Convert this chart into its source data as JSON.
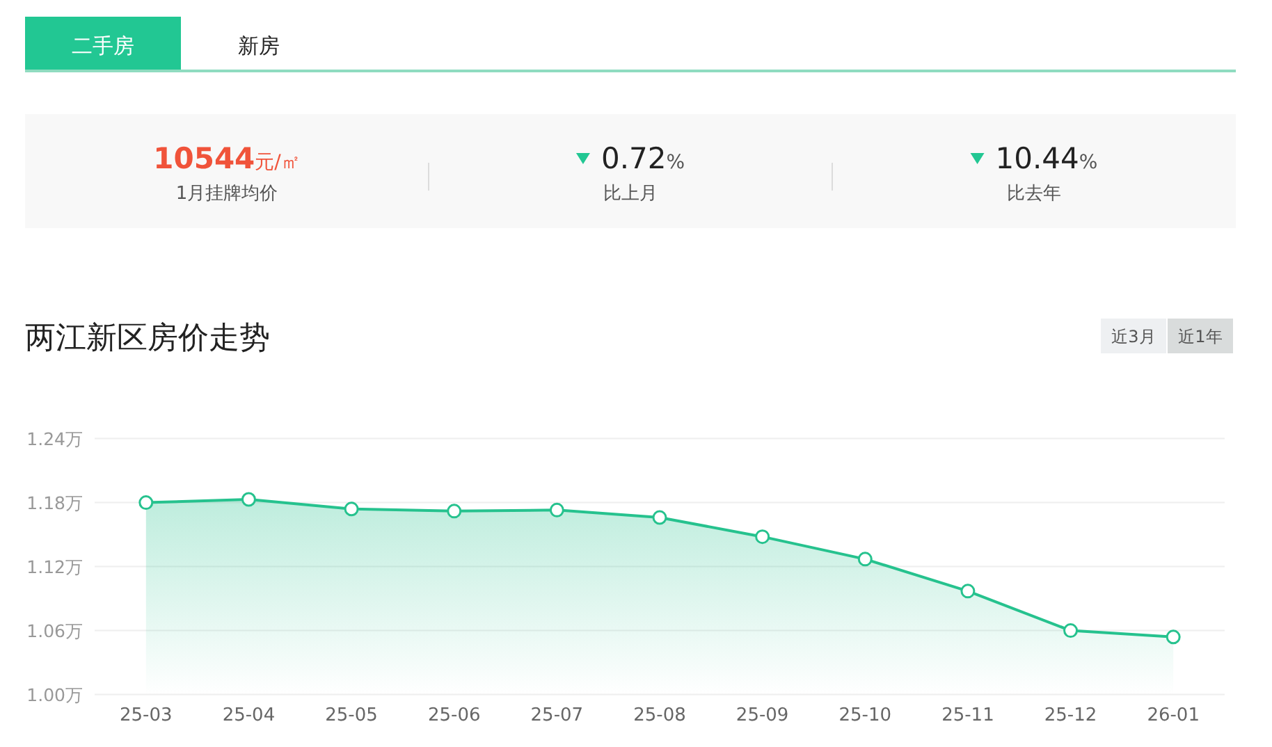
{
  "chart_data": [
    {
      "type": "other",
      "annotations": [
        "二手房",
        "新房",
        "10544元/㎡",
        "1月挂牌均价",
        "0.72%",
        "比上月",
        "10.44%",
        "比去年"
      ]
    },
    {
      "type": "area",
      "title": "两江新区房价走势",
      "annotations": [
        "近3月",
        "近1年"
      ],
      "categories": [
        "25-03",
        "25-04",
        "25-05",
        "25-06",
        "25-07",
        "25-08",
        "25-09",
        "25-10",
        "25-11",
        "25-12",
        "26-01"
      ],
      "values": [
        1.18,
        1.183,
        1.174,
        1.172,
        1.173,
        1.166,
        1.148,
        1.127,
        1.097,
        1.06,
        1.054
      ],
      "color": "#26c28e",
      "ylim": [
        1.0,
        1.24
      ],
      "yticks": [
        {
          "value": 1.0,
          "label": "1.00万"
        },
        {
          "value": 1.06,
          "label": "1.06万"
        },
        {
          "value": 1.12,
          "label": "1.12万"
        },
        {
          "value": 1.18,
          "label": "1.18万"
        },
        {
          "value": 1.24,
          "label": "1.24万"
        }
      ],
      "grid": "y",
      "marker": "circle"
    }
  ]
}
